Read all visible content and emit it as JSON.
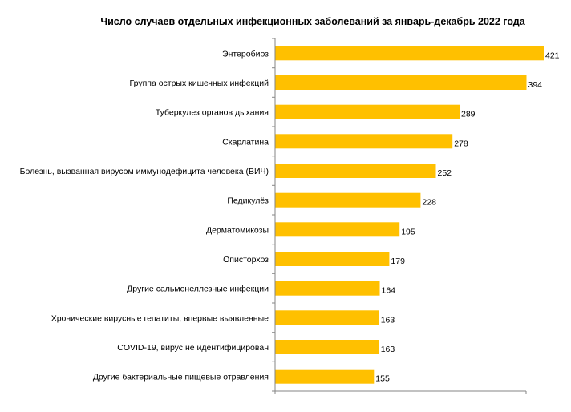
{
  "chart_data": {
    "type": "bar",
    "orientation": "horizontal",
    "title": "Число случаев отдельных инфекционных заболеваний за январь-декабрь 2022 года",
    "categories": [
      "Энтеробиоз",
      "Группа острых кишечных инфекций",
      "Туберкулез органов дыхания",
      "Скарлатина",
      "Болезнь, вызванная вирусом иммунодефицита человека (ВИЧ)",
      "Педикулёз",
      "Дерматомикозы",
      "Описторхоз",
      "Другие сальмонеллезные инфекции",
      "Хронические вирусные гепатиты, впервые выявленные",
      "COVID-19, вирус не идентифицирован",
      "Другие бактериальные пищевые отравления"
    ],
    "values": [
      421,
      394,
      289,
      278,
      252,
      228,
      195,
      179,
      164,
      163,
      163,
      155
    ],
    "xlim": [
      0,
      421
    ],
    "grid": false,
    "legend": "none",
    "bar_color": "#FFC000",
    "axis_color": "#868686"
  }
}
